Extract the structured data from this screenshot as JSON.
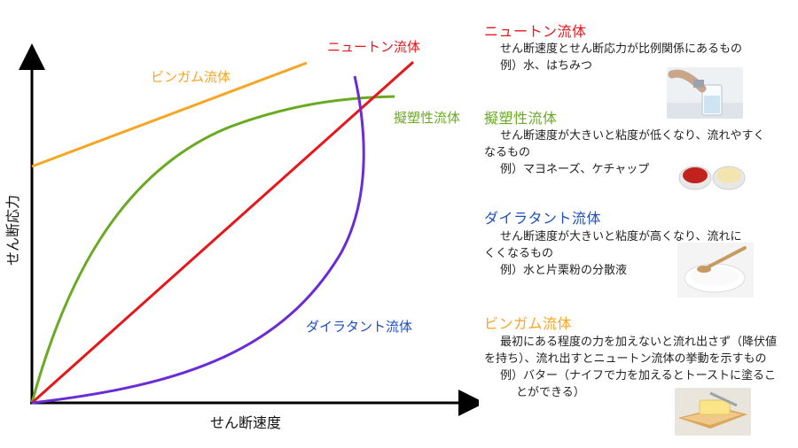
{
  "chart": {
    "y_axis_label": "せん断応力",
    "x_axis_label": "せん断速度",
    "curves": [
      {
        "id": "newtonian",
        "label": "ニュートン流体",
        "color": "#e6161b"
      },
      {
        "id": "bingham",
        "label": "ビンガム流体",
        "color": "#f5a623"
      },
      {
        "id": "pseudoplastic",
        "label": "擬塑性流体",
        "color": "#6aaa23"
      },
      {
        "id": "dilatant",
        "label": "ダイラタント流体",
        "color": "#1f4fbf",
        "line_color": "#6a2cd6"
      }
    ]
  },
  "sections": [
    {
      "title": "ニュートン流体",
      "title_color": "#e6161b",
      "lines": [
        "せん断速度とせん断応力が比例関係にあるもの",
        "例）水、はちみつ"
      ],
      "image": "water-glass-photo"
    },
    {
      "title": "擬塑性流体",
      "title_color": "#6aaa23",
      "lines": [
        "せん断速度が大きいと粘度が低くなり、流れやすく",
        "なるもの",
        "例）マヨネーズ、ケチャップ"
      ],
      "image": "ketchup-mayonnaise-photo"
    },
    {
      "title": "ダイラタント流体",
      "title_color": "#1f4fbf",
      "lines": [
        "せん断速度が大きいと粘度が高くなり、流れに",
        "くくなるもの",
        "例）水と片栗粉の分散液"
      ],
      "image": "starch-spoon-photo"
    },
    {
      "title": "ビンガム流体",
      "title_color": "#f5a623",
      "lines": [
        "最初にある程度の力を加えないと流れ出さず（降伏値",
        "を持ち）、流れ出すとニュートン流体の挙動を示すもの",
        "例）バター（ナイフで力を加えるとトーストに塗るこ",
        "とができる）"
      ],
      "image": "butter-toast-photo"
    }
  ]
}
